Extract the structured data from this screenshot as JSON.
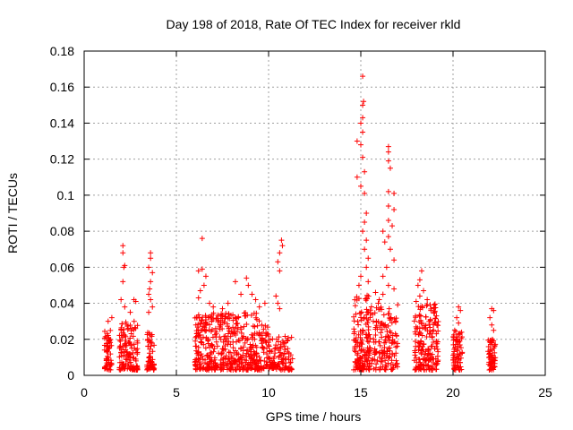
{
  "chart_data": {
    "type": "scatter",
    "title": "Day 198 of 2018, Rate Of TEC Index for receiver rkld",
    "xlabel": "GPS time / hours",
    "ylabel": "ROTI / TECUs",
    "xlim": [
      0,
      25
    ],
    "ylim": [
      0,
      0.18
    ],
    "xticks": [
      0,
      5,
      10,
      15,
      20,
      25
    ],
    "yticks": [
      0,
      0.02,
      0.04,
      0.06,
      0.08,
      0.1,
      0.12,
      0.14,
      0.16,
      0.18
    ],
    "xtick_labels": [
      "0",
      "5",
      "10",
      "15",
      "20",
      "25"
    ],
    "ytick_labels": [
      "0",
      "0.02",
      "0.04",
      "0.06",
      "0.08",
      "0.1",
      "0.12",
      "0.14",
      "0.16",
      "0.18"
    ],
    "grid": true,
    "marker": "+",
    "color": "#ff0000",
    "series": [
      {
        "name": "ROTI",
        "clusters": [
          {
            "x_range": [
              1.1,
              1.5
            ],
            "y_range": [
              0.003,
              0.025
            ],
            "count": 60,
            "outliers": [
              [
                1.3,
                0.03
              ],
              [
                1.5,
                0.032
              ]
            ]
          },
          {
            "x_range": [
              1.9,
              2.9
            ],
            "y_range": [
              0.003,
              0.03
            ],
            "count": 130,
            "outliers": [
              [
                2.1,
                0.072
              ],
              [
                2.1,
                0.068
              ],
              [
                2.15,
                0.06
              ],
              [
                2.2,
                0.061
              ],
              [
                2.1,
                0.052
              ],
              [
                2.0,
                0.042
              ],
              [
                2.2,
                0.038
              ],
              [
                2.7,
                0.042
              ],
              [
                2.8,
                0.041
              ],
              [
                2.5,
                0.035
              ]
            ]
          },
          {
            "x_range": [
              3.4,
              3.8
            ],
            "y_range": [
              0.003,
              0.025
            ],
            "count": 60,
            "outliers": [
              [
                3.6,
                0.068
              ],
              [
                3.6,
                0.065
              ],
              [
                3.5,
                0.06
              ],
              [
                3.7,
                0.057
              ],
              [
                3.6,
                0.052
              ],
              [
                3.55,
                0.048
              ],
              [
                3.5,
                0.045
              ],
              [
                3.6,
                0.042
              ],
              [
                3.7,
                0.038
              ],
              [
                3.5,
                0.035
              ]
            ]
          },
          {
            "x_range": [
              6.0,
              7.2
            ],
            "y_range": [
              0.003,
              0.035
            ],
            "count": 170,
            "outliers": [
              [
                6.4,
                0.076
              ],
              [
                6.2,
                0.058
              ],
              [
                6.4,
                0.059
              ],
              [
                6.6,
                0.055
              ],
              [
                6.5,
                0.05
              ],
              [
                6.3,
                0.047
              ],
              [
                6.2,
                0.043
              ],
              [
                6.8,
                0.04
              ],
              [
                7.0,
                0.038
              ]
            ]
          },
          {
            "x_range": [
              7.2,
              9.0
            ],
            "y_range": [
              0.003,
              0.035
            ],
            "count": 200,
            "outliers": [
              [
                8.2,
                0.052
              ],
              [
                8.8,
                0.054
              ],
              [
                8.9,
                0.05
              ],
              [
                7.8,
                0.04
              ],
              [
                7.5,
                0.037
              ],
              [
                8.5,
                0.045
              ]
            ]
          },
          {
            "x_range": [
              9.0,
              10.0
            ],
            "y_range": [
              0.003,
              0.035
            ],
            "count": 120,
            "outliers": [
              [
                9.1,
                0.045
              ],
              [
                9.3,
                0.042
              ],
              [
                9.5,
                0.038
              ],
              [
                9.8,
                0.04
              ]
            ]
          },
          {
            "x_range": [
              10.0,
              11.3
            ],
            "y_range": [
              0.003,
              0.022
            ],
            "count": 110,
            "outliers": [
              [
                10.7,
                0.075
              ],
              [
                10.75,
                0.072
              ],
              [
                10.6,
                0.068
              ],
              [
                10.5,
                0.063
              ],
              [
                10.6,
                0.058
              ],
              [
                10.4,
                0.044
              ],
              [
                10.5,
                0.04
              ],
              [
                10.6,
                0.037
              ]
            ]
          },
          {
            "x_range": [
              14.6,
              15.5
            ],
            "y_range": [
              0.003,
              0.045
            ],
            "count": 150,
            "outliers": [
              [
                15.1,
                0.166
              ],
              [
                15.15,
                0.152
              ],
              [
                15.1,
                0.15
              ],
              [
                15.1,
                0.143
              ],
              [
                15.0,
                0.14
              ],
              [
                15.1,
                0.135
              ],
              [
                14.8,
                0.13
              ],
              [
                15.0,
                0.128
              ],
              [
                15.1,
                0.121
              ],
              [
                15.2,
                0.113
              ],
              [
                14.8,
                0.11
              ],
              [
                15.0,
                0.105
              ],
              [
                15.2,
                0.101
              ],
              [
                15.3,
                0.09
              ],
              [
                15.2,
                0.085
              ],
              [
                15.1,
                0.08
              ],
              [
                15.3,
                0.075
              ],
              [
                15.2,
                0.07
              ],
              [
                15.4,
                0.065
              ],
              [
                15.3,
                0.06
              ],
              [
                15.0,
                0.055
              ],
              [
                14.9,
                0.05
              ],
              [
                15.4,
                0.052
              ]
            ]
          },
          {
            "x_range": [
              15.5,
              17.0
            ],
            "y_range": [
              0.003,
              0.04
            ],
            "count": 150,
            "outliers": [
              [
                16.5,
                0.127
              ],
              [
                16.5,
                0.124
              ],
              [
                16.5,
                0.119
              ],
              [
                16.6,
                0.115
              ],
              [
                16.5,
                0.102
              ],
              [
                16.8,
                0.101
              ],
              [
                16.5,
                0.094
              ],
              [
                16.8,
                0.092
              ],
              [
                16.5,
                0.086
              ],
              [
                16.7,
                0.083
              ],
              [
                16.2,
                0.08
              ],
              [
                16.5,
                0.077
              ],
              [
                16.3,
                0.074
              ],
              [
                16.6,
                0.07
              ],
              [
                16.8,
                0.064
              ],
              [
                16.4,
                0.06
              ],
              [
                16.2,
                0.055
              ],
              [
                16.5,
                0.05
              ],
              [
                16.8,
                0.048
              ],
              [
                15.8,
                0.046
              ],
              [
                16.0,
                0.042
              ],
              [
                16.2,
                0.045
              ]
            ]
          },
          {
            "x_range": [
              17.9,
              19.2
            ],
            "y_range": [
              0.003,
              0.04
            ],
            "count": 180,
            "outliers": [
              [
                18.3,
                0.058
              ],
              [
                18.2,
                0.053
              ],
              [
                18.1,
                0.05
              ],
              [
                18.4,
                0.047
              ],
              [
                18.2,
                0.044
              ],
              [
                18.0,
                0.041
              ],
              [
                18.6,
                0.042
              ],
              [
                18.8,
                0.036
              ],
              [
                19.0,
                0.035
              ],
              [
                19.1,
                0.033
              ]
            ]
          },
          {
            "x_range": [
              20.0,
              20.5
            ],
            "y_range": [
              0.003,
              0.025
            ],
            "count": 70,
            "outliers": [
              [
                20.3,
                0.038
              ],
              [
                20.4,
                0.036
              ],
              [
                20.2,
                0.032
              ],
              [
                20.3,
                0.029
              ]
            ]
          },
          {
            "x_range": [
              21.9,
              22.3
            ],
            "y_range": [
              0.003,
              0.02
            ],
            "count": 60,
            "outliers": [
              [
                22.1,
                0.037
              ],
              [
                22.2,
                0.036
              ],
              [
                22.0,
                0.032
              ],
              [
                22.1,
                0.028
              ],
              [
                22.2,
                0.025
              ]
            ]
          }
        ]
      }
    ]
  }
}
